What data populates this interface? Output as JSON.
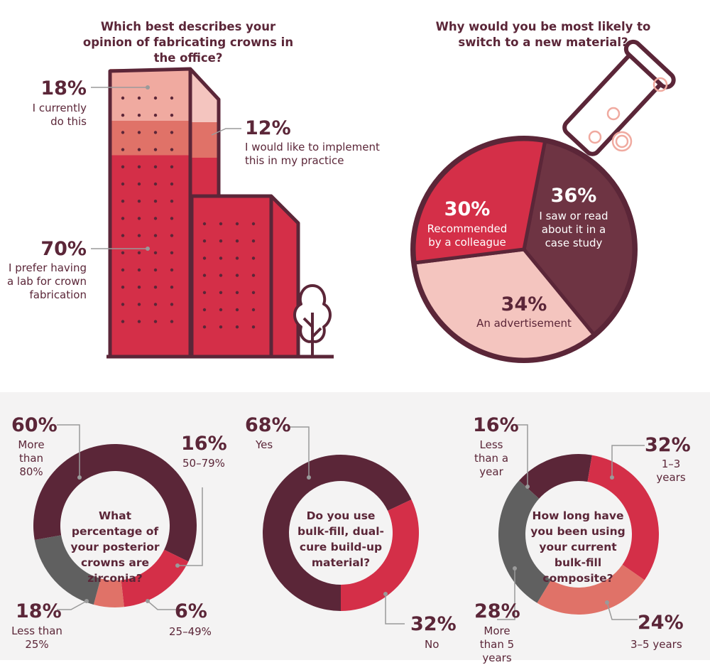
{
  "colors": {
    "maroon": "#5b2638",
    "plum": "#6e3443",
    "red": "#d42f48",
    "salmon": "#e07268",
    "pink": "#f0aaa0",
    "light_pink": "#f4c5bf",
    "gray": "#606060"
  },
  "icons": {
    "building": "building-icon",
    "tree": "tree-icon",
    "flask": "flask-icon"
  },
  "chart_data": [
    {
      "type": "bar",
      "title": "Which best describes your opinion of fabricating crowns in the office?",
      "stacked": true,
      "series": [
        {
          "name": "I currently do this",
          "value": 18,
          "label": "18%"
        },
        {
          "name": "I would like to implement this in my practice",
          "value": 12,
          "label": "12%"
        },
        {
          "name": "I prefer having a lab for crown fabrication",
          "value": 70,
          "label": "70%"
        }
      ]
    },
    {
      "type": "pie",
      "title": "Why would you be most likely to switch to a new material?",
      "slices": [
        {
          "name": "I saw or read about it in a case study",
          "value": 36,
          "label": "36%"
        },
        {
          "name": "An advertisement",
          "value": 34,
          "label": "34%"
        },
        {
          "name": "Recommended by a colleague",
          "value": 30,
          "label": "30%"
        }
      ]
    },
    {
      "type": "pie",
      "donut": true,
      "title": "What percentage of your posterior crowns are zirconia?",
      "slices": [
        {
          "name": "More than 80%",
          "value": 60,
          "label": "60%"
        },
        {
          "name": "50–79%",
          "value": 16,
          "label": "16%"
        },
        {
          "name": "25–49%",
          "value": 6,
          "label": "6%"
        },
        {
          "name": "Less than 25%",
          "value": 18,
          "label": "18%"
        }
      ]
    },
    {
      "type": "pie",
      "donut": true,
      "title": "Do you use bulk-fill, dual-cure build-up material?",
      "slices": [
        {
          "name": "Yes",
          "value": 68,
          "label": "68%"
        },
        {
          "name": "No",
          "value": 32,
          "label": "32%"
        }
      ]
    },
    {
      "type": "pie",
      "donut": true,
      "title": "How long have you been using your current bulk-fill composite?",
      "slices": [
        {
          "name": "Less than a year",
          "value": 16,
          "label": "16%"
        },
        {
          "name": "1–3 years",
          "value": 32,
          "label": "32%"
        },
        {
          "name": "3–5 years",
          "value": 24,
          "label": "24%"
        },
        {
          "name": "More than 5 years",
          "value": 28,
          "label": "28%"
        }
      ]
    }
  ]
}
